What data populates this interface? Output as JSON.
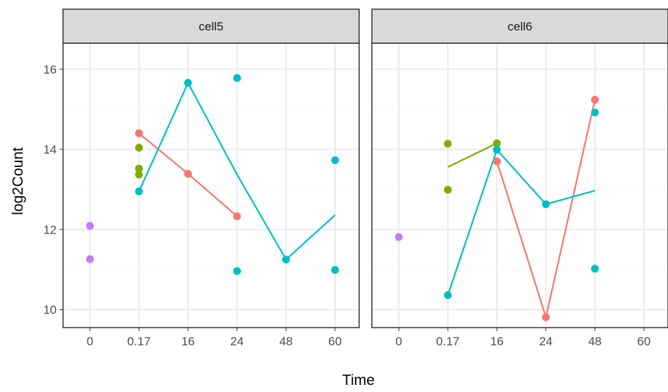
{
  "chart_data": {
    "type": "line",
    "xlabel": "Time",
    "ylabel": "log2Count",
    "x_categories": [
      "0",
      "0.17",
      "16",
      "24",
      "48",
      "60"
    ],
    "ylim": [
      9.55,
      16.65
    ],
    "yticks": [
      10,
      12,
      14,
      16
    ],
    "grid": true,
    "colors": {
      "red": "#F8766D",
      "green": "#7CAE00",
      "teal": "#00BFC4",
      "purple": "#C77CFF",
      "strip_bg": "#D9D9D9",
      "border": "#333333",
      "grid_major": "#EBEBEB",
      "grid_minor": "#F5F5F5"
    },
    "panels": [
      {
        "label": "cell5",
        "points": [
          {
            "x": "0",
            "y": 12.09,
            "color": "purple"
          },
          {
            "x": "0",
            "y": 11.26,
            "color": "purple"
          },
          {
            "x": "0.17",
            "y": 14.4,
            "color": "red"
          },
          {
            "x": "0.17",
            "y": 14.04,
            "color": "green"
          },
          {
            "x": "0.17",
            "y": 13.52,
            "color": "green"
          },
          {
            "x": "0.17",
            "y": 13.37,
            "color": "green"
          },
          {
            "x": "0.17",
            "y": 12.95,
            "color": "teal"
          },
          {
            "x": "16",
            "y": 15.66,
            "color": "teal"
          },
          {
            "x": "16",
            "y": 13.39,
            "color": "red"
          },
          {
            "x": "24",
            "y": 15.78,
            "color": "teal"
          },
          {
            "x": "24",
            "y": 12.33,
            "color": "red"
          },
          {
            "x": "24",
            "y": 10.96,
            "color": "teal"
          },
          {
            "x": "48",
            "y": 11.25,
            "color": "teal"
          },
          {
            "x": "60",
            "y": 13.73,
            "color": "teal"
          },
          {
            "x": "60",
            "y": 10.99,
            "color": "teal"
          }
        ],
        "lines": [
          {
            "color": "red",
            "points": [
              [
                "0.17",
                14.4
              ],
              [
                "16",
                13.39
              ],
              [
                "24",
                12.33
              ]
            ]
          },
          {
            "color": "teal",
            "points": [
              [
                "0.17",
                12.95
              ],
              [
                "16",
                15.66
              ],
              [
                "24",
                13.37
              ],
              [
                "48",
                11.25
              ],
              [
                "60",
                12.36
              ]
            ]
          }
        ]
      },
      {
        "label": "cell6",
        "points": [
          {
            "x": "0",
            "y": 11.81,
            "color": "purple"
          },
          {
            "x": "0.17",
            "y": 14.14,
            "color": "green"
          },
          {
            "x": "0.17",
            "y": 12.99,
            "color": "green"
          },
          {
            "x": "0.17",
            "y": 10.36,
            "color": "teal"
          },
          {
            "x": "16",
            "y": 14.15,
            "color": "green"
          },
          {
            "x": "16",
            "y": 13.99,
            "color": "teal"
          },
          {
            "x": "16",
            "y": 13.7,
            "color": "red"
          },
          {
            "x": "24",
            "y": 12.63,
            "color": "teal"
          },
          {
            "x": "24",
            "y": 9.81,
            "color": "red"
          },
          {
            "x": "48",
            "y": 15.24,
            "color": "red"
          },
          {
            "x": "48",
            "y": 14.92,
            "color": "teal"
          },
          {
            "x": "48",
            "y": 11.02,
            "color": "teal"
          }
        ],
        "lines": [
          {
            "color": "green",
            "points": [
              [
                "0.17",
                13.56
              ],
              [
                "16",
                14.15
              ]
            ]
          },
          {
            "color": "red",
            "points": [
              [
                "16",
                13.7
              ],
              [
                "24",
                9.81
              ],
              [
                "48",
                15.24
              ]
            ]
          },
          {
            "color": "teal",
            "points": [
              [
                "0.17",
                10.36
              ],
              [
                "16",
                13.99
              ],
              [
                "24",
                12.63
              ],
              [
                "48",
                12.97
              ]
            ]
          }
        ]
      }
    ]
  }
}
